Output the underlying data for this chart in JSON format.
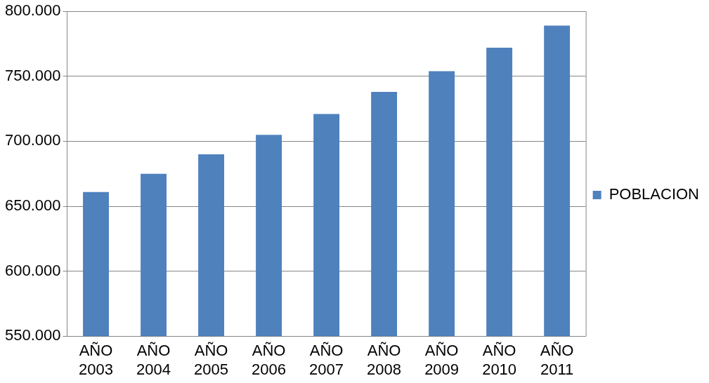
{
  "chart_data": {
    "type": "bar",
    "categories": [
      "AÑO 2003",
      "AÑO 2004",
      "AÑO 2005",
      "AÑO 2006",
      "AÑO 2007",
      "AÑO 2008",
      "AÑO 2009",
      "AÑO 2010",
      "AÑO 2011"
    ],
    "series": [
      {
        "name": "POBLACION",
        "color": "#4f81bd",
        "values": [
          661000,
          675000,
          690000,
          705000,
          721000,
          738000,
          754000,
          772000,
          789000
        ]
      }
    ],
    "ylim": [
      550000,
      800000
    ],
    "yticks": [
      {
        "value": 550000,
        "label": "550.000"
      },
      {
        "value": 600000,
        "label": "600.000"
      },
      {
        "value": 650000,
        "label": "650.000"
      },
      {
        "value": 700000,
        "label": "700.000"
      },
      {
        "value": 750000,
        "label": "750.000"
      },
      {
        "value": 800000,
        "label": "800.000"
      }
    ],
    "grid": "y",
    "legend": "right"
  }
}
